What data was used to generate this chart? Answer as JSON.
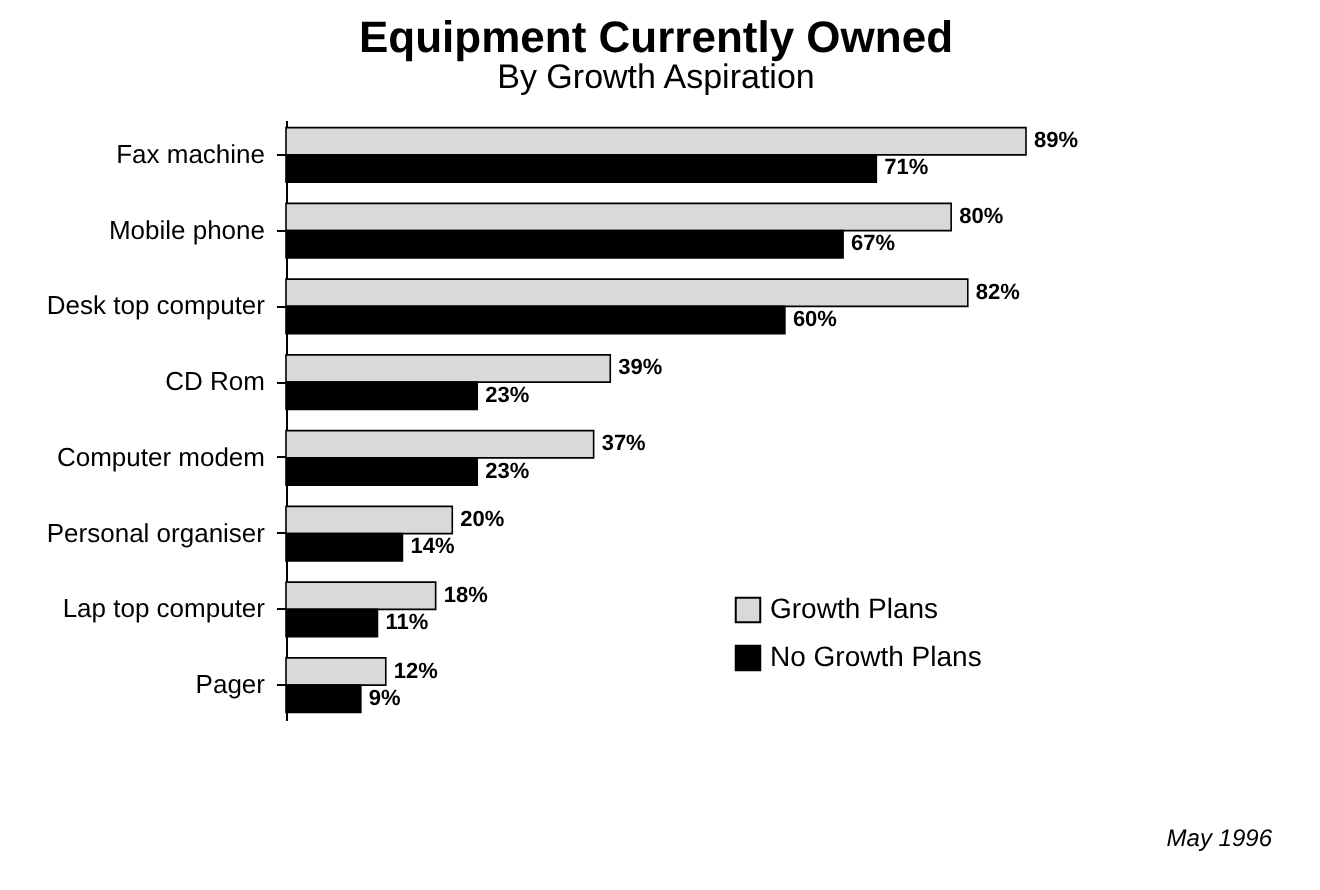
{
  "chart_data": {
    "type": "bar",
    "orientation": "horizontal",
    "title": "Equipment Currently Owned",
    "subtitle": "By Growth Aspiration",
    "categories": [
      "Fax machine",
      "Mobile phone",
      "Desk top computer",
      "CD Rom",
      "Computer modem",
      "Personal organiser",
      "Lap top computer",
      "Pager"
    ],
    "series": [
      {
        "name": "Growth Plans",
        "color": "#d9d9d9",
        "values": [
          89,
          80,
          82,
          39,
          37,
          20,
          18,
          12
        ],
        "value_labels": [
          "89%",
          "80%",
          "82%",
          "39%",
          "37%",
          "20%",
          "18%",
          "12%"
        ]
      },
      {
        "name": "No Growth Plans",
        "color": "#000000",
        "values": [
          71,
          67,
          60,
          23,
          23,
          14,
          11,
          9
        ],
        "value_labels": [
          "71%",
          "67%",
          "60%",
          "23%",
          "23%",
          "14%",
          "11%",
          "9%"
        ]
      }
    ],
    "legend": "bottom right",
    "annotations": [
      "May 1996"
    ]
  }
}
